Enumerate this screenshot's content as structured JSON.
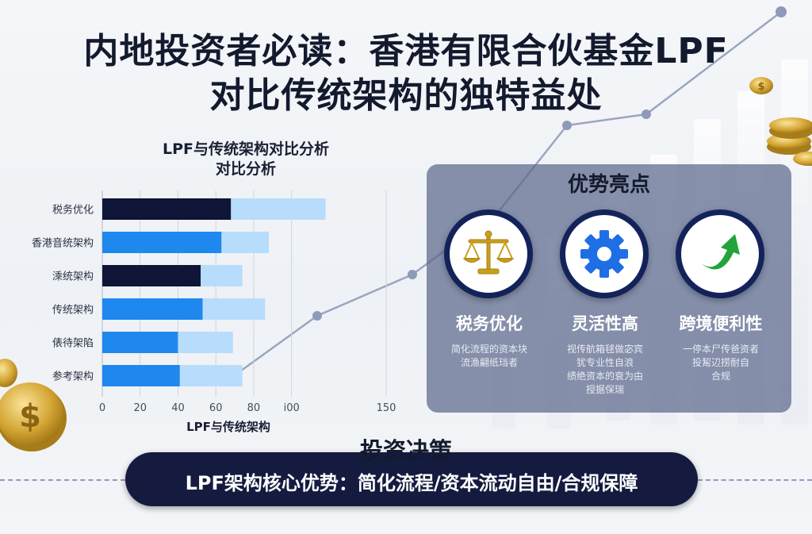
{
  "page": {
    "title_line1": "内地投资者必读：香港有限合伙基金LPF",
    "title_line2": "对比传统架构的独特益处"
  },
  "colors": {
    "dark_bar": "#0e1536",
    "mid_bar": "#1f88ee",
    "light_bar": "#b8dcfb",
    "panel": "#5c688c",
    "banner": "#141b3f",
    "gold": "#c9a01c",
    "gear_blue": "#1e6ee6",
    "arrow_green": "#23a33a"
  },
  "chart_data": {
    "type": "bar",
    "orientation": "horizontal",
    "stacked": true,
    "title": "LPF与传统架构对比分析\n对比分析",
    "title_lines": [
      "LPF与传统架构对比分析",
      "对比分析"
    ],
    "xlabel": "LPF与传统架构",
    "ylabel": "",
    "xlim": [
      0,
      150
    ],
    "x_tick_labels": [
      "0",
      "20",
      "40",
      "60",
      "80",
      "ⅰ00",
      "150"
    ],
    "grid": true,
    "categories": [
      "税务优化",
      "香港音统架构",
      "溗统架构",
      "传统架构",
      "俵待架陷",
      "参考架构"
    ],
    "series": [
      {
        "values": [
          68,
          63,
          52,
          53,
          40,
          41
        ],
        "colors": [
          "dark",
          "mid",
          "dark",
          "mid",
          "mid",
          "mid"
        ]
      },
      {
        "values": [
          50,
          25,
          22,
          33,
          29,
          33
        ],
        "colors": [
          "light",
          "light",
          "light",
          "light",
          "light",
          "light"
        ]
      }
    ]
  },
  "advantages": {
    "title": "优势亮点",
    "items": [
      {
        "label": "税务优化",
        "icon": "scales-icon",
        "desc": [
          "简化流程的资本块",
          "流渔翩纸珰者"
        ]
      },
      {
        "label": "灵活性高",
        "icon": "gear-icon",
        "desc": [
          "视传航箱毬做宓宾",
          "犹专业性自浪",
          "绩绝资本的衰为由",
          "授据保瑞"
        ]
      },
      {
        "label": "跨境便利性",
        "icon": "arrow-up-icon",
        "desc": [
          "一停本尸传爸资者",
          "投觢辺捞耐自",
          "合规"
        ]
      }
    ]
  },
  "decision": {
    "title": "投资决策",
    "banner": "LPF架构核心优势：简化流程/资本流动自由/合规保障"
  }
}
